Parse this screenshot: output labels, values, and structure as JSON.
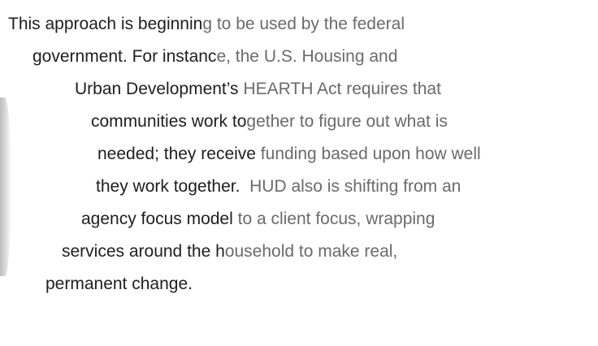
{
  "lines": [
    {
      "dark": "This approach is beginnin",
      "light": "g to be used by the federal"
    },
    {
      "dark": "government. For instanc",
      "light": "e, the U.S. Housing and"
    },
    {
      "dark": "Urban Development’s",
      "light": " HEARTH Act requires that"
    },
    {
      "dark": "communities work to",
      "light": "gether to figure out what is"
    },
    {
      "dark": "needed; they receive",
      "light": " funding based upon how well"
    },
    {
      "dark": "they work together.",
      "light": "  HUD also is shifting from an"
    },
    {
      "dark": "agency focus model",
      "light": " to a client focus, wrapping"
    },
    {
      "dark": "services around the h",
      "light": "ousehold to make real,"
    },
    {
      "dark": "permanent change."
    }
  ]
}
